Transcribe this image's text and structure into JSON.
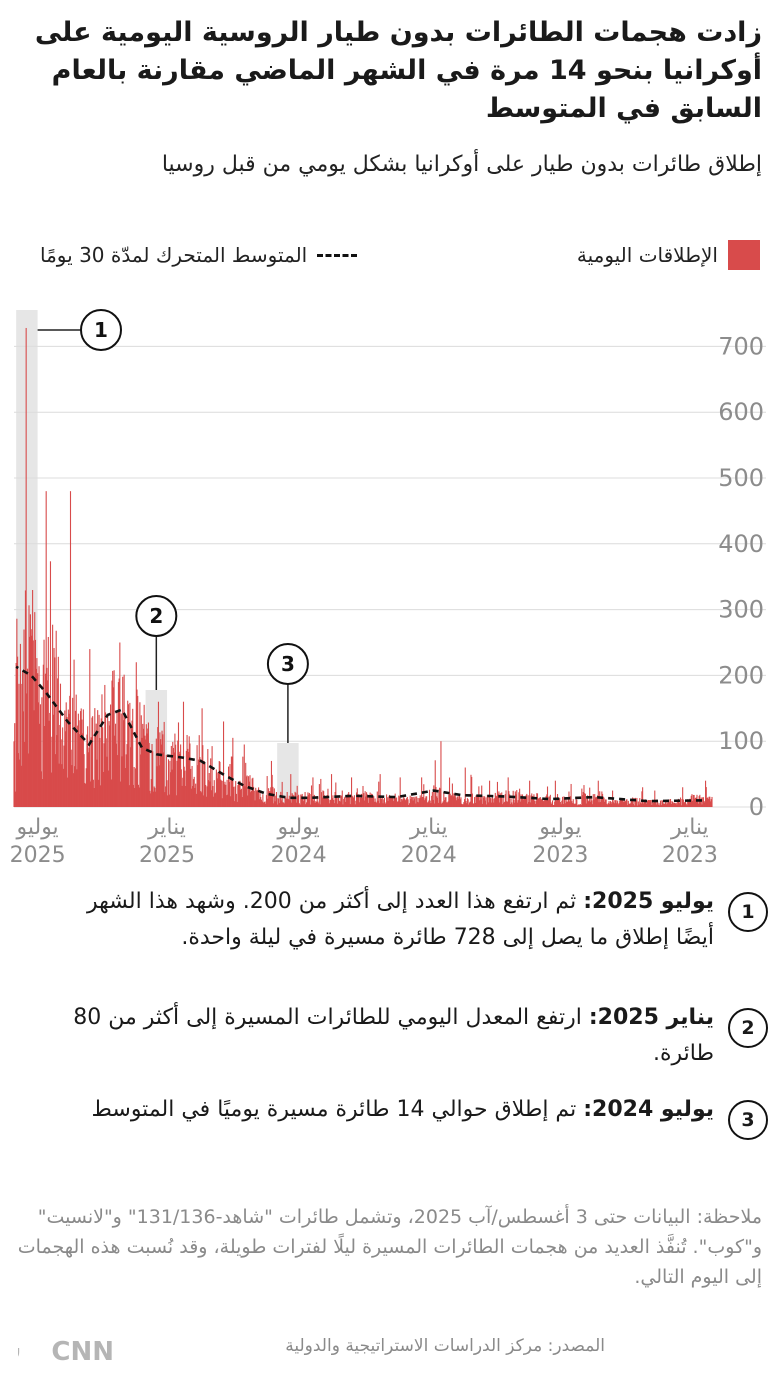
{
  "title": "زادت هجمات الطائرات بدون طيار الروسية اليومية على أوكرانيا بنحو 14 مرة في الشهر الماضي مقارنة بالعام السابق في المتوسط",
  "subtitle": "إطلاق طائرات بدون طيار على أوكرانيا بشكل يومي من قبل روسيا",
  "legend": {
    "daily": "الإطلاقات اليومية",
    "avg": "المتوسط المتحرك لمدّة 30 يومًا"
  },
  "colors": {
    "bars": "#d84b4b",
    "highlight": "#e6e6e6",
    "avg_line": "#111111",
    "axis_text": "#8c8c8c"
  },
  "chart_data": {
    "type": "bar",
    "title": "إطلاق طائرات بدون طيار على أوكرانيا بشكل يومي من قبل روسيا",
    "x_direction": "right-to-left",
    "x_range": [
      "2022-12-01",
      "2025-08-03"
    ],
    "ylim": [
      0,
      750
    ],
    "yticks": [
      0,
      100,
      200,
      300,
      400,
      500,
      600,
      700
    ],
    "xticks": [
      {
        "date": "2023-01-01",
        "month": "يناير",
        "year": "2023"
      },
      {
        "date": "2023-07-01",
        "month": "يوليو",
        "year": "2023"
      },
      {
        "date": "2024-01-01",
        "month": "يناير",
        "year": "2024"
      },
      {
        "date": "2024-07-01",
        "month": "يوليو",
        "year": "2024"
      },
      {
        "date": "2025-01-01",
        "month": "يناير",
        "year": "2025"
      },
      {
        "date": "2025-07-01",
        "month": "يوليو",
        "year": "2025"
      }
    ],
    "grid": true,
    "series": [
      {
        "name": "الإطلاقات اليومية",
        "kind": "bars",
        "note": "daily launches, approximate monthly envelope",
        "monthly": [
          {
            "month": "2022-12",
            "typical": 12,
            "peak": 40
          },
          {
            "month": "2023-01",
            "typical": 8,
            "peak": 30
          },
          {
            "month": "2023-02",
            "typical": 7,
            "peak": 25
          },
          {
            "month": "2023-03",
            "typical": 9,
            "peak": 30
          },
          {
            "month": "2023-04",
            "typical": 7,
            "peak": 25
          },
          {
            "month": "2023-05",
            "typical": 15,
            "peak": 40
          },
          {
            "month": "2023-06",
            "typical": 10,
            "peak": 35
          },
          {
            "month": "2023-07",
            "typical": 12,
            "peak": 40
          },
          {
            "month": "2023-08",
            "typical": 13,
            "peak": 40
          },
          {
            "month": "2023-09",
            "typical": 16,
            "peak": 45
          },
          {
            "month": "2023-10",
            "typical": 12,
            "peak": 40
          },
          {
            "month": "2023-11",
            "typical": 13,
            "peak": 60
          },
          {
            "month": "2023-12",
            "typical": 20,
            "peak": 100
          },
          {
            "month": "2024-01",
            "typical": 11,
            "peak": 45
          },
          {
            "month": "2024-02",
            "typical": 13,
            "peak": 45
          },
          {
            "month": "2024-03",
            "typical": 15,
            "peak": 50
          },
          {
            "month": "2024-04",
            "typical": 14,
            "peak": 45
          },
          {
            "month": "2024-05",
            "typical": 16,
            "peak": 50
          },
          {
            "month": "2024-06",
            "typical": 14,
            "peak": 45
          },
          {
            "month": "2024-07",
            "typical": 14,
            "peak": 50
          },
          {
            "month": "2024-08",
            "typical": 20,
            "peak": 70
          },
          {
            "month": "2024-09",
            "typical": 30,
            "peak": 95
          },
          {
            "month": "2024-10",
            "typical": 50,
            "peak": 130
          },
          {
            "month": "2024-11",
            "typical": 60,
            "peak": 150
          },
          {
            "month": "2024-12",
            "typical": 70,
            "peak": 160
          },
          {
            "month": "2025-01",
            "typical": 80,
            "peak": 160
          },
          {
            "month": "2025-02",
            "typical": 110,
            "peak": 220
          },
          {
            "month": "2025-03",
            "typical": 130,
            "peak": 250
          },
          {
            "month": "2025-04",
            "typical": 95,
            "peak": 240
          },
          {
            "month": "2025-05",
            "typical": 115,
            "peak": 480
          },
          {
            "month": "2025-06",
            "typical": 170,
            "peak": 480
          },
          {
            "month": "2025-07",
            "typical": 210,
            "peak": 728
          },
          {
            "month": "2025-08",
            "typical": 70,
            "peak": 150
          }
        ]
      },
      {
        "name": "المتوسط المتحرك لمدّة 30 يومًا",
        "kind": "line",
        "points": [
          {
            "date": "2022-12-15",
            "value": 10
          },
          {
            "date": "2023-03-01",
            "value": 9
          },
          {
            "date": "2023-05-15",
            "value": 15
          },
          {
            "date": "2023-07-15",
            "value": 12
          },
          {
            "date": "2023-09-15",
            "value": 16
          },
          {
            "date": "2023-11-15",
            "value": 18
          },
          {
            "date": "2023-12-25",
            "value": 25
          },
          {
            "date": "2024-02-15",
            "value": 15
          },
          {
            "date": "2024-04-15",
            "value": 17
          },
          {
            "date": "2024-06-15",
            "value": 14
          },
          {
            "date": "2024-07-15",
            "value": 14
          },
          {
            "date": "2024-08-15",
            "value": 20
          },
          {
            "date": "2024-09-15",
            "value": 32
          },
          {
            "date": "2024-10-15",
            "value": 50
          },
          {
            "date": "2024-11-15",
            "value": 70
          },
          {
            "date": "2024-12-10",
            "value": 75
          },
          {
            "date": "2025-01-15",
            "value": 80
          },
          {
            "date": "2025-02-05",
            "value": 90
          },
          {
            "date": "2025-03-05",
            "value": 148
          },
          {
            "date": "2025-03-25",
            "value": 140
          },
          {
            "date": "2025-04-20",
            "value": 95
          },
          {
            "date": "2025-05-20",
            "value": 130
          },
          {
            "date": "2025-06-20",
            "value": 175
          },
          {
            "date": "2025-07-10",
            "value": 200
          },
          {
            "date": "2025-07-31",
            "value": 213
          }
        ]
      }
    ],
    "highlights": [
      {
        "start": "2025-07-01",
        "end": "2025-07-31",
        "label": "1"
      },
      {
        "start": "2025-01-01",
        "end": "2025-01-31",
        "label": "2"
      },
      {
        "start": "2024-07-01",
        "end": "2024-07-31",
        "label": "3"
      }
    ]
  },
  "annotations": [
    {
      "num": "1",
      "heading": "يوليو 2025:",
      "text": "ثم ارتفع هذا العدد إلى أكثر من 200. وشهد هذا الشهر أيضًا إطلاق ما يصل إلى 728 طائرة مسيرة في ليلة واحدة."
    },
    {
      "num": "2",
      "heading": "يناير 2025:",
      "text": "ارتفع المعدل اليومي للطائرات المسيرة إلى أكثر من 80 طائرة."
    },
    {
      "num": "3",
      "heading": "يوليو 2024:",
      "text": "تم إطلاق حوالي 14 طائرة مسيرة يوميًا في المتوسط"
    }
  ],
  "note": "ملاحظة: البيانات حتى 3 أغسطس/آب 2025، وتشمل طائرات \"شاهد-131/136\" و\"لانسيت\" و\"كوب\". تُنفَّذ العديد من هجمات الطائرات المسيرة ليلًا لفترات طويلة، وقد نُسبت هذه الهجمات إلى اليوم التالي.",
  "source": "المصدر: مركز الدراسات الاستراتيجية والدولية",
  "logo": {
    "text": "بالعربية",
    "brand": "CNN"
  }
}
